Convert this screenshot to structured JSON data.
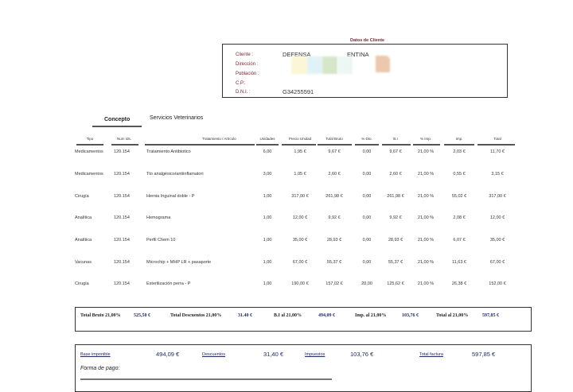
{
  "client": {
    "title": "Datos de Cliente",
    "labels": [
      "Cliente :",
      "Dirección :",
      "Población :",
      "C.P.:",
      "D.N.I. :"
    ],
    "cliente_part1": "DEFENSA",
    "cliente_part2": "ENTINA",
    "dni": "G34255591"
  },
  "concepto": {
    "label": "Concepto",
    "value": "Servicios Veterinarios"
  },
  "table": {
    "headers": [
      "Tipo",
      "Num Ids.",
      "Tratamiento / Artículo",
      "Unidades",
      "Precio Unidad",
      "Total Bruto",
      "% Dto.",
      "B.I",
      "% Imp.",
      "Imp.",
      "Total"
    ],
    "rows": [
      [
        "Medicamentos",
        "120.154",
        "Tratamiento Antibiotico",
        "6,00",
        "1,95 €",
        "9,67 €",
        "0,00",
        "9,67 €",
        "21,00 %",
        "2,03 €",
        "11,70 €"
      ],
      [
        "Medicamentos",
        "120.154",
        "Tto analgésico/antiinflamatori",
        "3,00",
        "1,05 €",
        "2,60 €",
        "0,00",
        "2,60 €",
        "21,00 %",
        "0,55 €",
        "3,15 €"
      ],
      [
        "Cirugía",
        "120.154",
        "Hernia Inguinal doble - P",
        "1,00",
        "317,00 €",
        "261,98 €",
        "0,00",
        "261,98 €",
        "21,00 %",
        "55,02 €",
        "317,00 €"
      ],
      [
        "Analítica",
        "120.154",
        "Hemograma",
        "1,00",
        "12,00 €",
        "9,92 €",
        "0,00",
        "9,92 €",
        "21,00 %",
        "2,08 €",
        "12,00 €"
      ],
      [
        "Analítica",
        "120.154",
        "Perfil Chem 10",
        "1,00",
        "35,00 €",
        "28,93 €",
        "0,00",
        "28,93 €",
        "21,00 %",
        "6,07 €",
        "35,00 €"
      ],
      [
        "Vacunas",
        "120.154",
        "Microchip + MHP LR + pasaporte",
        "1,00",
        "67,00 €",
        "55,37 €",
        "0,00",
        "55,37 €",
        "21,00 %",
        "11,63 €",
        "67,00 €"
      ],
      [
        "Cirugía",
        "120.154",
        "Esterilización perra - P",
        "1,00",
        "190,00 €",
        "157,02 €",
        "20,00",
        "125,62 €",
        "21,00 %",
        "26,38 €",
        "152,00 €"
      ]
    ]
  },
  "totals": {
    "items": [
      {
        "label": "Total Bruto 21,00%",
        "value": "525,50 €"
      },
      {
        "label": "Total Descuentos 21,00%",
        "value": "31.40 €"
      },
      {
        "label": "B.I al 21,00%",
        "value": "494,09 €"
      },
      {
        "label": "Imp. al 21,00%",
        "value": "103,76 €"
      },
      {
        "label": "Total al 21,00%",
        "value": "597,85 €"
      }
    ]
  },
  "summary": {
    "base_label": "Base imponible",
    "base_value": "494,09 €",
    "desc_label": "Descuentos",
    "desc_value": "31,40 €",
    "imp_label": "Impuestos",
    "imp_value": "103,76 €",
    "total_label": "Total factura",
    "total_value": "597,85 €",
    "forma_pago": "Forma de pago:"
  }
}
